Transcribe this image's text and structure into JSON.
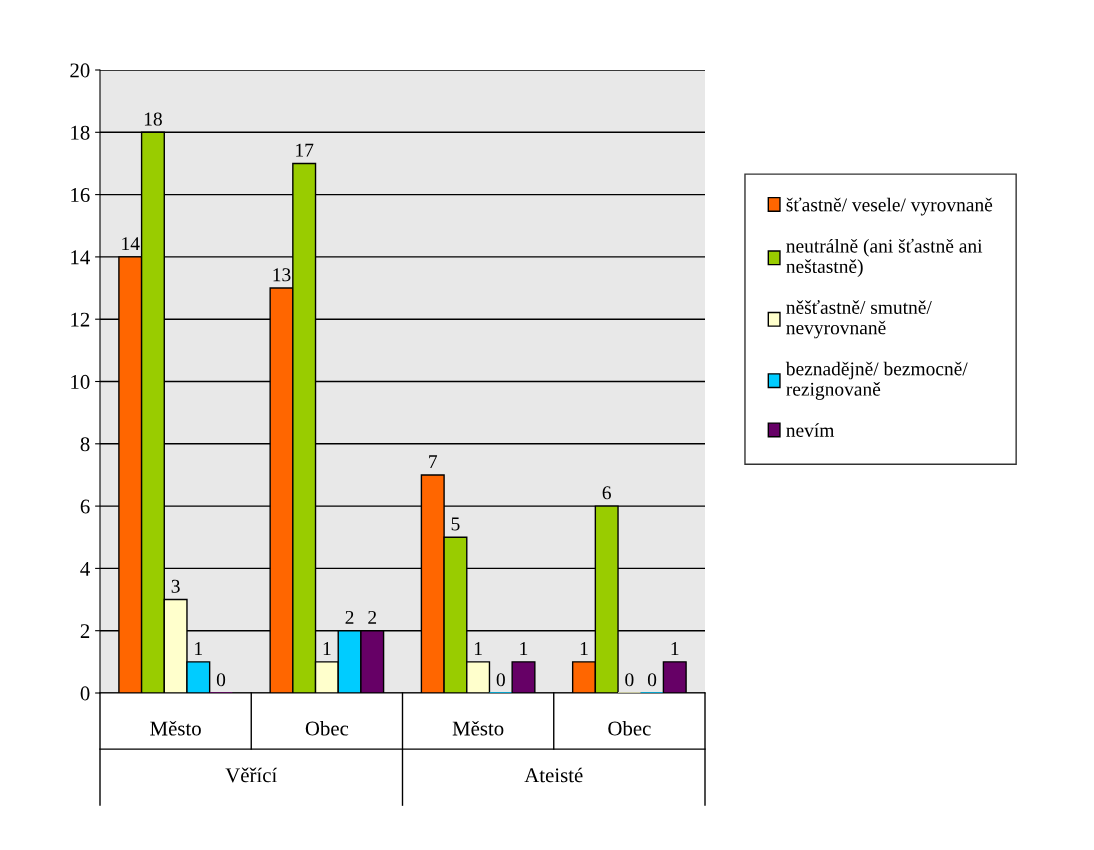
{
  "chart_data": {
    "type": "bar",
    "categories": [
      "Město",
      "Obec",
      "Město",
      "Obec"
    ],
    "annotations": [
      "Věřící",
      "Ateisté"
    ],
    "series": [
      {
        "name": "šťastně/ vesele/ vyrovnaně",
        "color": "#ff6600",
        "values": [
          14,
          13,
          7,
          1
        ]
      },
      {
        "name": "neutrálně (ani šťastně ani neštastně)",
        "color": "#99cc00",
        "values": [
          18,
          17,
          5,
          6
        ]
      },
      {
        "name": "něšťastně/ smutně/ nevyrovnaně",
        "color": "#ffffcc",
        "values": [
          3,
          1,
          1,
          0
        ]
      },
      {
        "name": "beznadějně/ bezmocně/ rezignovaně",
        "color": "#00ccff",
        "values": [
          1,
          2,
          0,
          0
        ]
      },
      {
        "name": "nevím",
        "color": "#660066",
        "values": [
          0,
          2,
          1,
          1
        ]
      }
    ],
    "ylim": [
      0,
      20
    ],
    "yticks": [
      0,
      2,
      4,
      6,
      8,
      10,
      12,
      14,
      16,
      18,
      20
    ],
    "grid": "y",
    "legend": "right",
    "data_labels": true
  }
}
